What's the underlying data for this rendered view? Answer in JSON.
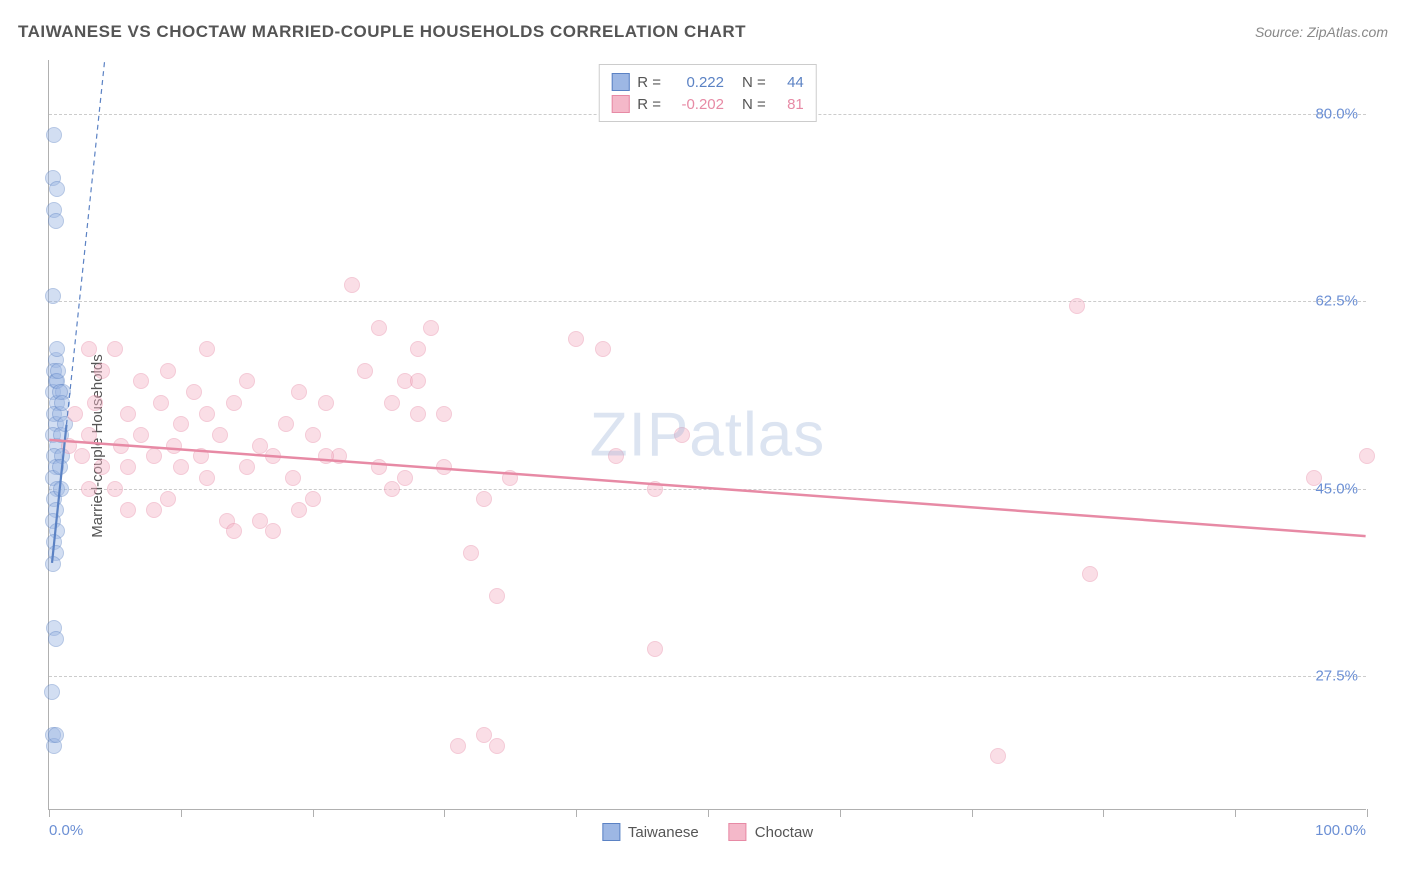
{
  "title": "TAIWANESE VS CHOCTAW MARRIED-COUPLE HOUSEHOLDS CORRELATION CHART",
  "source": "Source: ZipAtlas.com",
  "watermark": "ZIPatlas",
  "chart": {
    "type": "scatter",
    "ylabel": "Married-couple Households",
    "xlim": [
      0,
      100
    ],
    "ylim": [
      15,
      85
    ],
    "xticks": [
      0,
      10,
      20,
      30,
      40,
      50,
      60,
      70,
      80,
      90,
      100
    ],
    "yticks": [
      27.5,
      45.0,
      62.5,
      80.0
    ],
    "ytick_labels": [
      "27.5%",
      "45.0%",
      "62.5%",
      "80.0%"
    ],
    "x_start_label": "0.0%",
    "x_end_label": "100.0%",
    "background_color": "#ffffff",
    "grid_color": "#cccccc",
    "axis_color": "#b0b0b0",
    "tick_label_color": "#6b8fd4",
    "marker_radius": 8,
    "marker_opacity": 0.45,
    "series": [
      {
        "name": "Taiwanese",
        "color_fill": "#9db7e4",
        "color_stroke": "#5b82c4",
        "R": "0.222",
        "N": "44",
        "trend": {
          "x1": 0.2,
          "y1": 38,
          "x2": 2.5,
          "y2": 65,
          "solid_until_x": 1.3,
          "stroke_width": 2.2
        },
        "points": [
          [
            0.4,
            78
          ],
          [
            0.3,
            74
          ],
          [
            0.6,
            73
          ],
          [
            0.4,
            71
          ],
          [
            0.5,
            70
          ],
          [
            0.3,
            63
          ],
          [
            0.5,
            57
          ],
          [
            0.6,
            58
          ],
          [
            0.4,
            56
          ],
          [
            0.5,
            55
          ],
          [
            0.3,
            54
          ],
          [
            0.6,
            53
          ],
          [
            0.4,
            52
          ],
          [
            0.5,
            51
          ],
          [
            0.3,
            50
          ],
          [
            0.6,
            49
          ],
          [
            0.4,
            48
          ],
          [
            0.5,
            47
          ],
          [
            0.3,
            46
          ],
          [
            0.6,
            45
          ],
          [
            0.4,
            44
          ],
          [
            0.5,
            43
          ],
          [
            0.3,
            42
          ],
          [
            0.6,
            41
          ],
          [
            0.4,
            40
          ],
          [
            0.5,
            39
          ],
          [
            0.3,
            38
          ],
          [
            0.6,
            55
          ],
          [
            0.8,
            52
          ],
          [
            0.9,
            50
          ],
          [
            1.0,
            48
          ],
          [
            1.1,
            54
          ],
          [
            1.2,
            51
          ],
          [
            0.8,
            47
          ],
          [
            0.9,
            45
          ],
          [
            0.4,
            32
          ],
          [
            0.5,
            31
          ],
          [
            0.2,
            26
          ],
          [
            0.3,
            22
          ],
          [
            0.4,
            21
          ],
          [
            0.5,
            22
          ],
          [
            0.7,
            56
          ],
          [
            0.8,
            54
          ],
          [
            1.0,
            53
          ]
        ]
      },
      {
        "name": "Choctaw",
        "color_fill": "#f4b8c9",
        "color_stroke": "#e78aa5",
        "R": "-0.202",
        "N": "81",
        "trend": {
          "x1": 0,
          "y1": 49.5,
          "x2": 100,
          "y2": 40.5,
          "stroke_width": 2.5
        },
        "points": [
          [
            1.5,
            49
          ],
          [
            2,
            52
          ],
          [
            2.5,
            48
          ],
          [
            3,
            58
          ],
          [
            3,
            50
          ],
          [
            3.5,
            53
          ],
          [
            4,
            47
          ],
          [
            4,
            56
          ],
          [
            5,
            58
          ],
          [
            5.5,
            49
          ],
          [
            6,
            52
          ],
          [
            6,
            47
          ],
          [
            7,
            55
          ],
          [
            7,
            50
          ],
          [
            8,
            48
          ],
          [
            8.5,
            53
          ],
          [
            9,
            56
          ],
          [
            9.5,
            49
          ],
          [
            10,
            51
          ],
          [
            10,
            47
          ],
          [
            11,
            54
          ],
          [
            11.5,
            48
          ],
          [
            12,
            52
          ],
          [
            12,
            46
          ],
          [
            13,
            50
          ],
          [
            13.5,
            42
          ],
          [
            14,
            41
          ],
          [
            14,
            53
          ],
          [
            15,
            47
          ],
          [
            15,
            55
          ],
          [
            16,
            49
          ],
          [
            16,
            42
          ],
          [
            17,
            41
          ],
          [
            18,
            51
          ],
          [
            18.5,
            46
          ],
          [
            19,
            54
          ],
          [
            20,
            44
          ],
          [
            20,
            50
          ],
          [
            21,
            53
          ],
          [
            22,
            48
          ],
          [
            23,
            64
          ],
          [
            25,
            60
          ],
          [
            25,
            47
          ],
          [
            26,
            53
          ],
          [
            27,
            55
          ],
          [
            27,
            46
          ],
          [
            28,
            58
          ],
          [
            28,
            55
          ],
          [
            28,
            52
          ],
          [
            29,
            60
          ],
          [
            30,
            47
          ],
          [
            31,
            21
          ],
          [
            32,
            39
          ],
          [
            33,
            44
          ],
          [
            33,
            22
          ],
          [
            34,
            35
          ],
          [
            34,
            21
          ],
          [
            35,
            46
          ],
          [
            40,
            59
          ],
          [
            42,
            58
          ],
          [
            43,
            48
          ],
          [
            46,
            30
          ],
          [
            46,
            45
          ],
          [
            72,
            20
          ],
          [
            78,
            62
          ],
          [
            79,
            37
          ],
          [
            96,
            46
          ],
          [
            100,
            48
          ],
          [
            48,
            50
          ],
          [
            12,
            58
          ],
          [
            5,
            45
          ],
          [
            8,
            43
          ],
          [
            19,
            43
          ],
          [
            21,
            48
          ],
          [
            3,
            45
          ],
          [
            6,
            43
          ],
          [
            9,
            44
          ],
          [
            24,
            56
          ],
          [
            26,
            45
          ],
          [
            30,
            52
          ],
          [
            17,
            48
          ]
        ]
      }
    ]
  },
  "legend_bottom": {
    "items": [
      {
        "label": "Taiwanese",
        "fill": "#9db7e4",
        "stroke": "#5b82c4"
      },
      {
        "label": "Choctaw",
        "fill": "#f4b8c9",
        "stroke": "#e78aa5"
      }
    ]
  }
}
